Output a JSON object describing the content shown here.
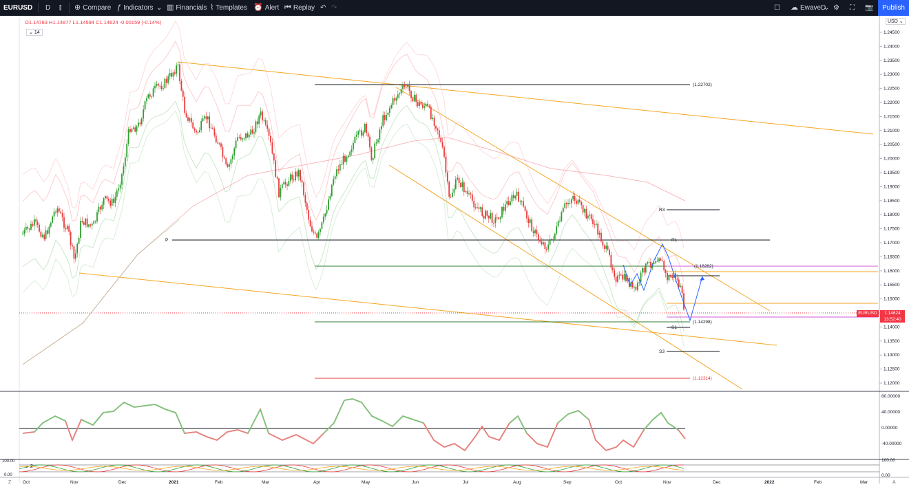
{
  "toolbar": {
    "symbol": "EURUSD",
    "interval": "D",
    "compare": "Compare",
    "indicators": "Indicators",
    "financials": "Financials",
    "templates": "Templates",
    "alert": "Alert",
    "replay": "Replay",
    "layout_name": "EwaveD",
    "publish": "Publish"
  },
  "legend": {
    "open": "O1.14783",
    "high": "H1.14877",
    "low": "L1.14594",
    "close": "C1.14624",
    "change": "-0.00159 (-0.14%)",
    "rsi_length": "14"
  },
  "price_axis": {
    "currency": "USD",
    "ticks": [
      "1.24500",
      "1.24000",
      "1.23500",
      "1.23000",
      "1.22500",
      "1.22000",
      "1.21500",
      "1.21000",
      "1.20500",
      "1.20000",
      "1.19500",
      "1.19000",
      "1.18500",
      "1.18000",
      "1.17500",
      "1.17000",
      "1.16500",
      "1.16000",
      "1.15500",
      "1.15000",
      "1.14500",
      "1.14000",
      "1.13500",
      "1.13000",
      "1.12500",
      "1.12000"
    ],
    "last_price": "1.14624",
    "countdown": "13:52:40",
    "symbol_tag": "EURUSD"
  },
  "osc_axis": {
    "ticks": [
      "80.00000",
      "40.00000",
      "0.00000",
      "-40.00000"
    ]
  },
  "stoch_axis": {
    "ticks": [
      "100.00",
      "0.00"
    ],
    "left_ticks": [
      "100.00",
      "0.00"
    ],
    "length": "2"
  },
  "time_axis": {
    "labels": [
      "Oct",
      "Nov",
      "Dec",
      "2021",
      "Feb",
      "Mar",
      "Apr",
      "May",
      "Jun",
      "Jul",
      "Aug",
      "Sep",
      "Oct",
      "Nov",
      "Dec",
      "2022",
      "Feb",
      "Mar"
    ]
  },
  "annotations": {
    "level_top": "(1.22702)",
    "level_mid": "(1.16282)",
    "level_low": "(1.14298)",
    "level_bottom": "(1.12314)",
    "pivot": "P",
    "r3": "R3",
    "r1": "R1",
    "s1": "S1",
    "s3": "S3"
  },
  "colors": {
    "up": "#2e9e2e",
    "down": "#e83b3b",
    "toolbar_bg": "#131722",
    "accent": "#2962ff",
    "trendline": "#f5a623"
  }
}
